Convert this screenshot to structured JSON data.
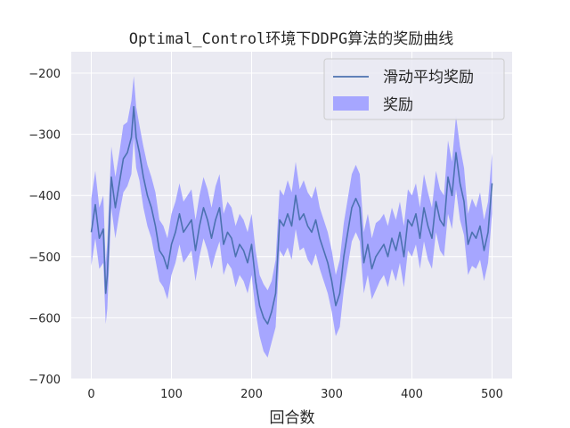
{
  "chart_data": {
    "type": "line",
    "title": "Optimal_Control环境下DDPG算法的奖励曲线",
    "xlabel": "回合数",
    "ylabel": "",
    "xlim": [
      -25,
      525
    ],
    "ylim": [
      -700,
      -165
    ],
    "xticks": [
      0,
      100,
      200,
      300,
      400,
      500
    ],
    "yticks": [
      -700,
      -600,
      -500,
      -400,
      -300,
      -200
    ],
    "grid": true,
    "legend_position": "top-right",
    "colors": {
      "line": "#4c72b0",
      "band": "#a6a6ff",
      "background": "#eaeaf2",
      "grid": "#ffffff"
    },
    "series": [
      {
        "name": "滑动平均奖励",
        "kind": "line",
        "x": [
          0,
          5,
          10,
          15,
          18,
          20,
          25,
          30,
          35,
          40,
          45,
          50,
          53,
          56,
          60,
          65,
          70,
          75,
          80,
          85,
          90,
          95,
          100,
          105,
          110,
          115,
          120,
          125,
          130,
          135,
          140,
          145,
          150,
          155,
          160,
          165,
          170,
          175,
          180,
          185,
          190,
          195,
          200,
          205,
          210,
          215,
          220,
          225,
          230,
          235,
          240,
          245,
          250,
          255,
          260,
          265,
          270,
          275,
          280,
          285,
          290,
          295,
          300,
          305,
          310,
          315,
          320,
          325,
          330,
          335,
          340,
          345,
          350,
          355,
          360,
          365,
          370,
          375,
          380,
          385,
          390,
          395,
          400,
          405,
          410,
          415,
          420,
          425,
          430,
          435,
          440,
          445,
          450,
          455,
          460,
          465,
          470,
          475,
          480,
          485,
          490,
          495,
          500
        ],
        "y": [
          -460,
          -415,
          -470,
          -455,
          -560,
          -530,
          -370,
          -420,
          -380,
          -340,
          -330,
          -305,
          -255,
          -305,
          -330,
          -370,
          -400,
          -420,
          -450,
          -490,
          -500,
          -520,
          -480,
          -460,
          -430,
          -460,
          -450,
          -440,
          -490,
          -450,
          -420,
          -440,
          -470,
          -440,
          -420,
          -480,
          -460,
          -470,
          -500,
          -480,
          -490,
          -510,
          -480,
          -540,
          -580,
          -600,
          -610,
          -590,
          -560,
          -440,
          -450,
          -430,
          -450,
          -400,
          -440,
          -430,
          -450,
          -460,
          -440,
          -470,
          -490,
          -510,
          -540,
          -580,
          -560,
          -500,
          -460,
          -420,
          -405,
          -420,
          -510,
          -480,
          -520,
          -500,
          -490,
          -480,
          -500,
          -470,
          -490,
          -460,
          -500,
          -440,
          -450,
          -430,
          -470,
          -420,
          -450,
          -470,
          -410,
          -440,
          -450,
          -370,
          -400,
          -330,
          -380,
          -410,
          -480,
          -460,
          -470,
          -450,
          -490,
          -460,
          -380
        ]
      },
      {
        "name": "奖励",
        "kind": "band",
        "x": [
          0,
          5,
          10,
          15,
          18,
          20,
          25,
          30,
          35,
          40,
          45,
          50,
          53,
          56,
          60,
          65,
          70,
          75,
          80,
          85,
          90,
          95,
          100,
          105,
          110,
          115,
          120,
          125,
          130,
          135,
          140,
          145,
          150,
          155,
          160,
          165,
          170,
          175,
          180,
          185,
          190,
          195,
          200,
          205,
          210,
          215,
          220,
          225,
          230,
          235,
          240,
          245,
          250,
          255,
          260,
          265,
          270,
          275,
          280,
          285,
          290,
          295,
          300,
          305,
          310,
          315,
          320,
          325,
          330,
          335,
          340,
          345,
          350,
          355,
          360,
          365,
          370,
          375,
          380,
          385,
          390,
          395,
          400,
          405,
          410,
          415,
          420,
          425,
          430,
          435,
          440,
          445,
          450,
          455,
          460,
          465,
          470,
          475,
          480,
          485,
          490,
          495,
          500
        ],
        "upper": [
          -405,
          -360,
          -420,
          -400,
          -510,
          -475,
          -320,
          -370,
          -330,
          -285,
          -280,
          -245,
          -205,
          -255,
          -285,
          -320,
          -350,
          -370,
          -395,
          -440,
          -450,
          -470,
          -430,
          -410,
          -380,
          -410,
          -400,
          -390,
          -440,
          -400,
          -370,
          -390,
          -420,
          -385,
          -365,
          -430,
          -410,
          -420,
          -450,
          -430,
          -440,
          -460,
          -430,
          -490,
          -530,
          -545,
          -555,
          -540,
          -505,
          -390,
          -400,
          -375,
          -395,
          -345,
          -390,
          -375,
          -395,
          -405,
          -385,
          -420,
          -440,
          -460,
          -490,
          -530,
          -505,
          -445,
          -405,
          -365,
          -350,
          -365,
          -460,
          -430,
          -470,
          -445,
          -440,
          -430,
          -450,
          -420,
          -440,
          -410,
          -450,
          -390,
          -400,
          -380,
          -420,
          -365,
          -395,
          -420,
          -360,
          -390,
          -400,
          -310,
          -345,
          -270,
          -320,
          -355,
          -430,
          -405,
          -420,
          -395,
          -440,
          -410,
          -330
        ],
        "lower": [
          -515,
          -470,
          -520,
          -510,
          -610,
          -585,
          -420,
          -470,
          -430,
          -395,
          -385,
          -365,
          -305,
          -355,
          -375,
          -420,
          -450,
          -470,
          -505,
          -540,
          -550,
          -570,
          -530,
          -510,
          -480,
          -510,
          -500,
          -490,
          -540,
          -500,
          -470,
          -490,
          -520,
          -495,
          -475,
          -530,
          -510,
          -520,
          -550,
          -530,
          -540,
          -560,
          -530,
          -590,
          -630,
          -655,
          -665,
          -640,
          -615,
          -490,
          -500,
          -485,
          -505,
          -455,
          -490,
          -485,
          -505,
          -515,
          -495,
          -520,
          -540,
          -560,
          -590,
          -630,
          -615,
          -555,
          -515,
          -475,
          -460,
          -475,
          -560,
          -530,
          -570,
          -555,
          -540,
          -530,
          -550,
          -520,
          -540,
          -510,
          -550,
          -490,
          -500,
          -480,
          -520,
          -475,
          -505,
          -520,
          -460,
          -490,
          -500,
          -430,
          -455,
          -390,
          -440,
          -465,
          -530,
          -515,
          -520,
          -505,
          -540,
          -510,
          -430
        ]
      }
    ]
  }
}
